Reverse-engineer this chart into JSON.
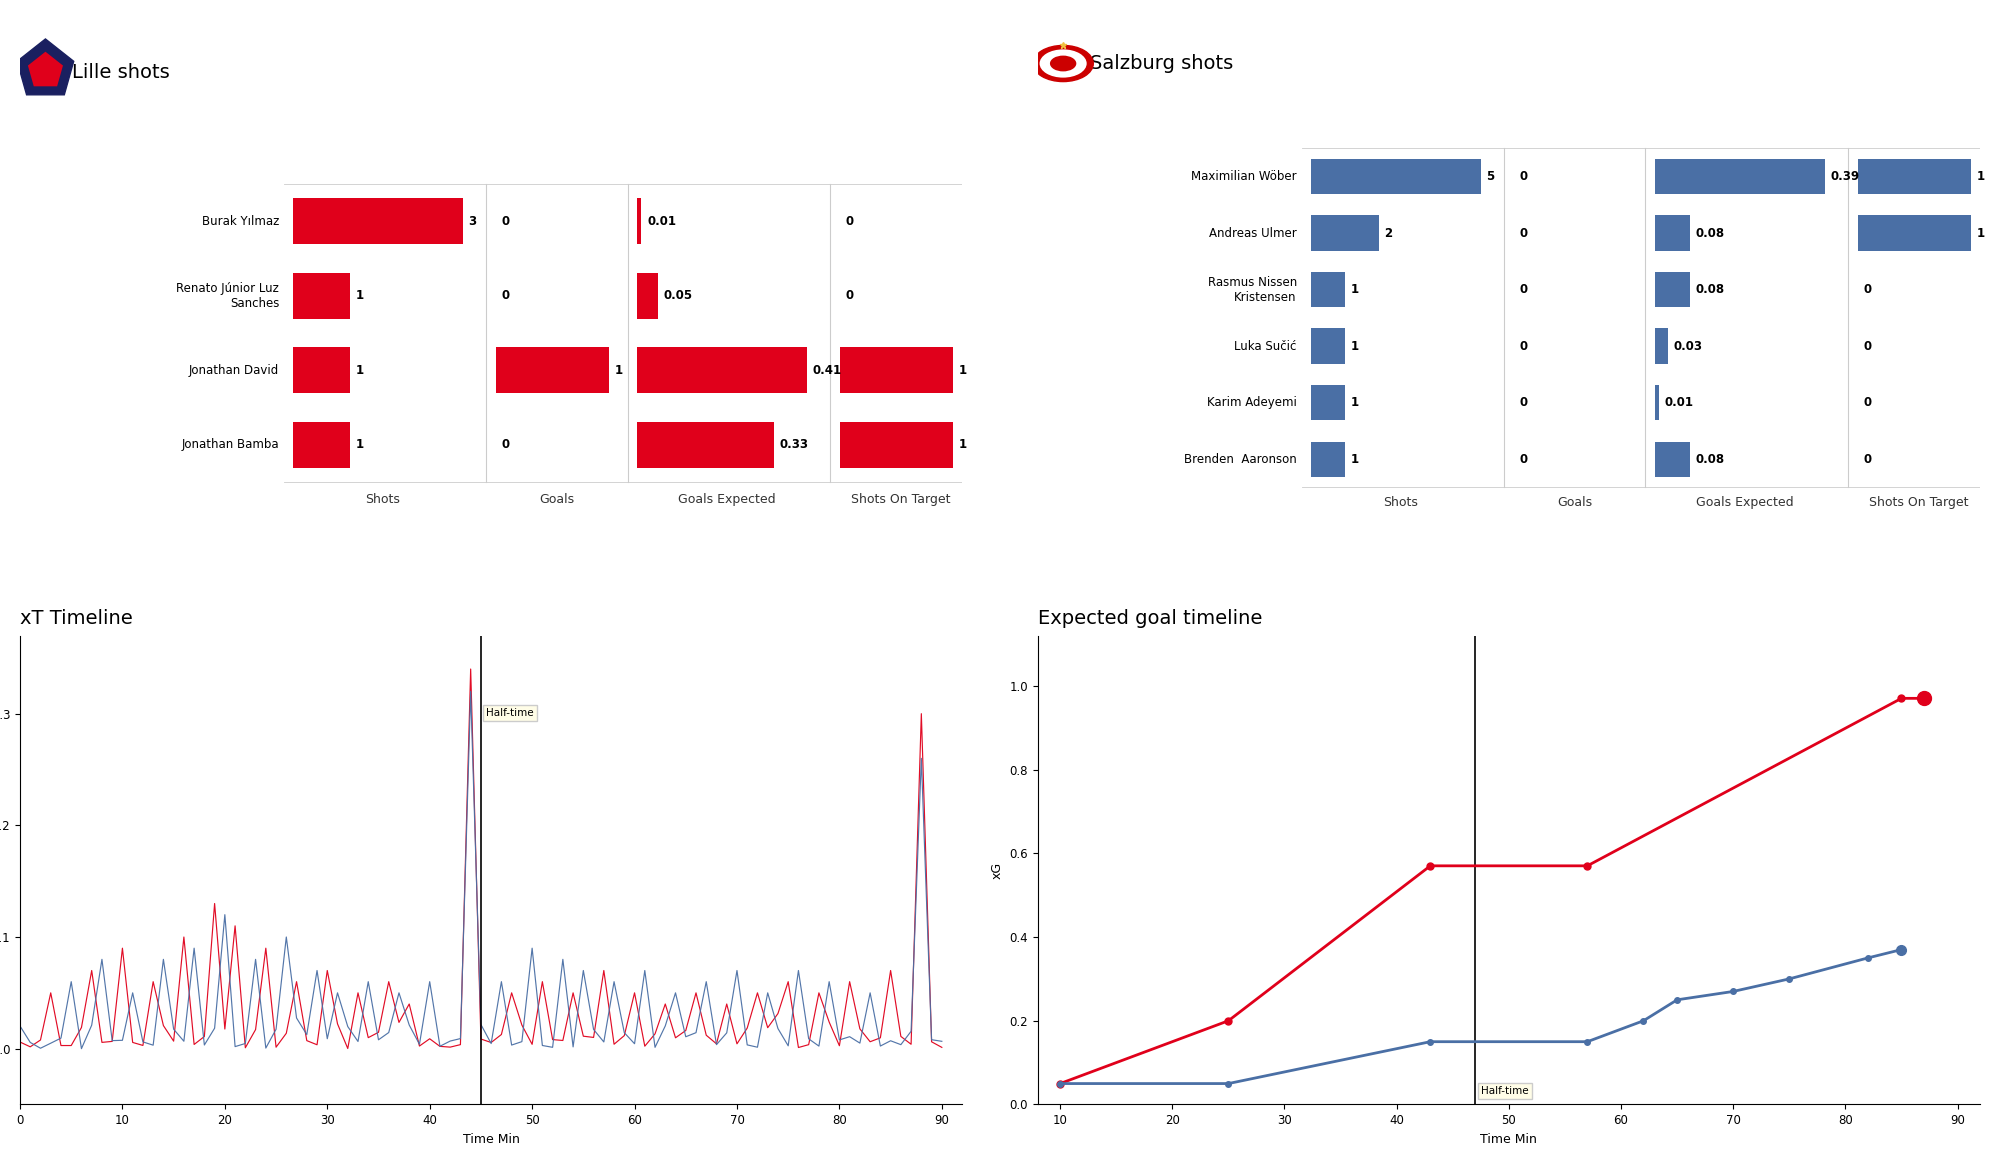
{
  "lille_players": [
    "Burak Yılmaz",
    "Renato Júnior Luz\nSanches",
    "Jonathan David",
    "Jonathan Bamba"
  ],
  "lille_shots": [
    3,
    1,
    1,
    1
  ],
  "lille_goals": [
    0,
    0,
    1,
    0
  ],
  "lille_xg": [
    0.01,
    0.05,
    0.41,
    0.33
  ],
  "lille_sot": [
    0,
    0,
    1,
    1
  ],
  "lille_color": "#e0001b",
  "salzburg_players": [
    "Maximilian Wöber",
    "Andreas Ulmer",
    "Rasmus Nissen\nKristensen",
    "Luka Sučić",
    "Karim Adeyemi",
    "Brenden  Aaronson"
  ],
  "salzburg_shots": [
    5,
    2,
    1,
    1,
    1,
    1
  ],
  "salzburg_goals": [
    0,
    0,
    0,
    0,
    0,
    0
  ],
  "salzburg_xg": [
    0.39,
    0.08,
    0.08,
    0.03,
    0.01,
    0.08
  ],
  "salzburg_sot": [
    1,
    1,
    0,
    0,
    0,
    0
  ],
  "salzburg_color": "#4a6fa5",
  "lille_title": "Lille shots",
  "salzburg_title": "Salzburg shots",
  "xt_title": "xT Timeline",
  "xg_title": "Expected goal timeline",
  "halftime_xt": 45,
  "halftime_xg": 47,
  "lille_xg_times": [
    10,
    25,
    43,
    57,
    85,
    87
  ],
  "lille_xg_cumvals": [
    0.05,
    0.2,
    0.57,
    0.57,
    0.97,
    0.97
  ],
  "salzburg_xg_times": [
    10,
    25,
    43,
    57,
    62,
    65,
    70,
    75,
    82,
    85
  ],
  "salzburg_xg_cumvals": [
    0.05,
    0.05,
    0.15,
    0.15,
    0.2,
    0.25,
    0.27,
    0.3,
    0.35,
    0.37
  ],
  "bg_color": "#ffffff",
  "title_fontsize": 14,
  "label_fontsize": 9,
  "tick_fontsize": 8.5,
  "player_fontsize": 8.5
}
